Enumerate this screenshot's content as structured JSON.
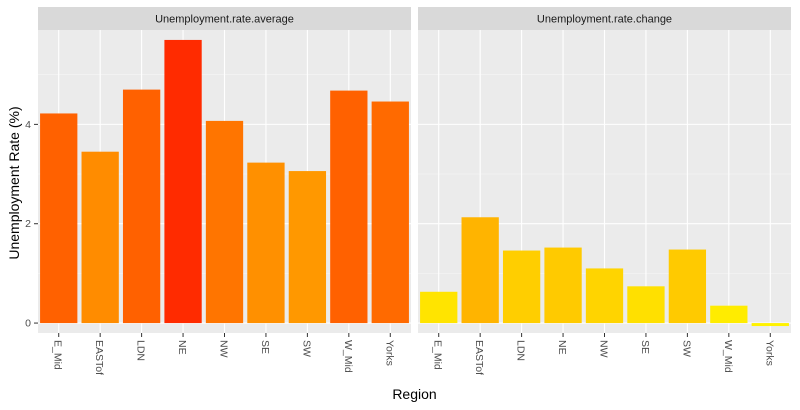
{
  "chart_data": {
    "type": "bar",
    "xlabel": "Region",
    "ylabel": "Unemployment Rate (%)",
    "ylim": [
      -0.2,
      5.9
    ],
    "yticks": [
      0,
      2,
      4
    ],
    "categories": [
      "E_Mid",
      "EASTof",
      "LDN",
      "NE",
      "NW",
      "SE",
      "SW",
      "W_Mid",
      "Yorks"
    ],
    "panels": [
      {
        "title": "Unemployment.rate.average",
        "values": [
          4.22,
          3.45,
          4.7,
          5.7,
          4.07,
          3.23,
          3.06,
          4.68,
          4.46
        ],
        "colors": [
          "#FF6100",
          "#FF8C00",
          "#FF6100",
          "#FF2B00",
          "#FF7500",
          "#FF9000",
          "#FF9800",
          "#FF6100",
          "#FF6A00"
        ]
      },
      {
        "title": "Unemployment.rate.change",
        "values": [
          0.63,
          2.13,
          1.46,
          1.52,
          1.1,
          0.74,
          1.48,
          0.35,
          -0.06
        ],
        "colors": [
          "#FFE400",
          "#FFB400",
          "#FFCE00",
          "#FFCA00",
          "#FFD400",
          "#FFE000",
          "#FFCA00",
          "#FFEC00",
          "#FFF200"
        ]
      }
    ]
  }
}
